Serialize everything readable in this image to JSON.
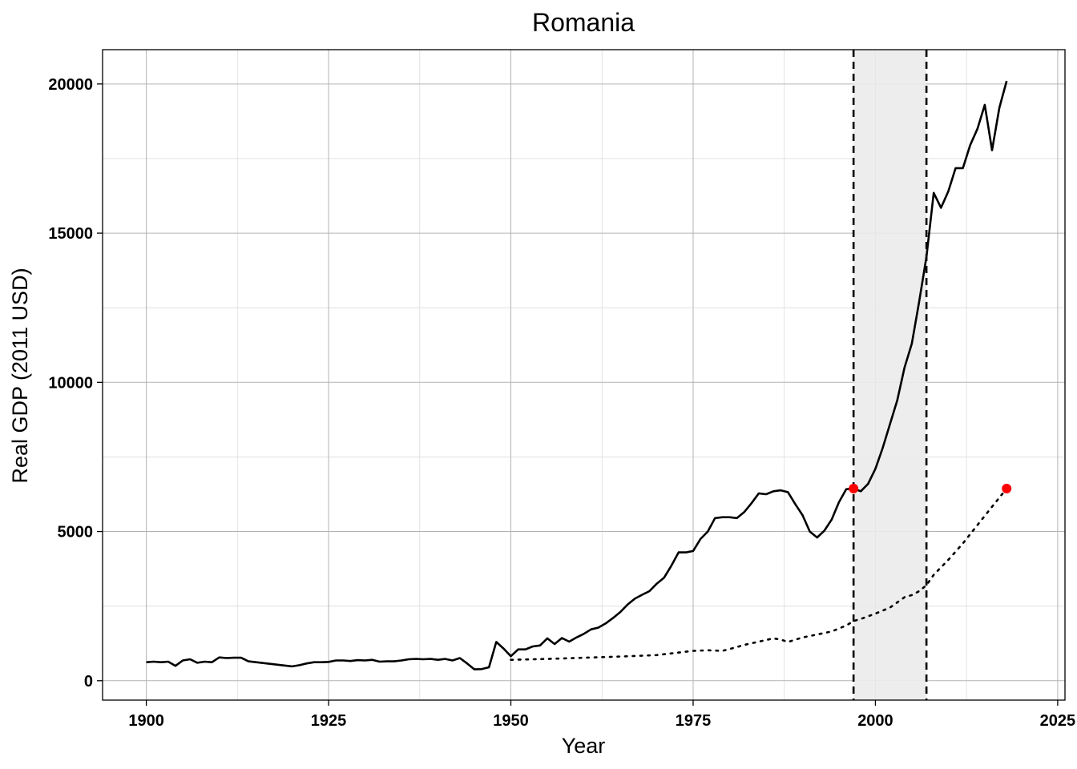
{
  "chart_data": {
    "type": "line",
    "title": "Romania",
    "xlabel": "Year",
    "ylabel": "Real GDP (2011 USD)",
    "xlim": [
      1894,
      2026
    ],
    "ylim": [
      -650,
      21150
    ],
    "x_ticks": [
      1900,
      1925,
      1950,
      1975,
      2000,
      2025
    ],
    "x_tick_labels": [
      "1900",
      "1925",
      "1950",
      "1975",
      "2000",
      "2025"
    ],
    "y_ticks": [
      0,
      5000,
      10000,
      15000,
      20000
    ],
    "y_tick_labels": [
      "0",
      "5000",
      "10000",
      "15000",
      "20000"
    ],
    "grid": true,
    "legend": "none",
    "shaded_region": {
      "x": [
        1997,
        2007
      ],
      "color": "#ebebeb",
      "border": "dashed"
    },
    "series": [
      {
        "style": "solid",
        "color": "#000000",
        "points": [
          [
            1900,
            620
          ],
          [
            1901,
            640
          ],
          [
            1902,
            620
          ],
          [
            1903,
            640
          ],
          [
            1904,
            500
          ],
          [
            1905,
            680
          ],
          [
            1906,
            720
          ],
          [
            1907,
            600
          ],
          [
            1908,
            640
          ],
          [
            1909,
            620
          ],
          [
            1910,
            780
          ],
          [
            1911,
            760
          ],
          [
            1912,
            770
          ],
          [
            1913,
            770
          ],
          [
            1914,
            650
          ],
          [
            1920,
            480
          ],
          [
            1921,
            520
          ],
          [
            1922,
            580
          ],
          [
            1923,
            620
          ],
          [
            1924,
            620
          ],
          [
            1925,
            630
          ],
          [
            1926,
            680
          ],
          [
            1927,
            680
          ],
          [
            1928,
            660
          ],
          [
            1929,
            690
          ],
          [
            1930,
            680
          ],
          [
            1931,
            700
          ],
          [
            1932,
            640
          ],
          [
            1933,
            650
          ],
          [
            1934,
            650
          ],
          [
            1935,
            680
          ],
          [
            1936,
            720
          ],
          [
            1937,
            730
          ],
          [
            1938,
            720
          ],
          [
            1939,
            730
          ],
          [
            1940,
            700
          ],
          [
            1941,
            730
          ],
          [
            1942,
            680
          ],
          [
            1943,
            760
          ],
          [
            1944,
            580
          ],
          [
            1945,
            380
          ],
          [
            1946,
            390
          ],
          [
            1947,
            450
          ],
          [
            1948,
            1300
          ],
          [
            1949,
            1080
          ],
          [
            1950,
            820
          ],
          [
            1951,
            1050
          ],
          [
            1952,
            1050
          ],
          [
            1953,
            1150
          ],
          [
            1954,
            1180
          ],
          [
            1955,
            1420
          ],
          [
            1956,
            1230
          ],
          [
            1957,
            1430
          ],
          [
            1958,
            1310
          ],
          [
            1959,
            1450
          ],
          [
            1960,
            1570
          ],
          [
            1961,
            1720
          ],
          [
            1962,
            1780
          ],
          [
            1963,
            1920
          ],
          [
            1964,
            2100
          ],
          [
            1965,
            2300
          ],
          [
            1966,
            2550
          ],
          [
            1967,
            2750
          ],
          [
            1968,
            2880
          ],
          [
            1969,
            3000
          ],
          [
            1970,
            3250
          ],
          [
            1971,
            3450
          ],
          [
            1972,
            3850
          ],
          [
            1973,
            4300
          ],
          [
            1974,
            4300
          ],
          [
            1975,
            4350
          ],
          [
            1976,
            4750
          ],
          [
            1977,
            5000
          ],
          [
            1978,
            5450
          ],
          [
            1979,
            5480
          ],
          [
            1980,
            5480
          ],
          [
            1981,
            5450
          ],
          [
            1982,
            5650
          ],
          [
            1983,
            5950
          ],
          [
            1984,
            6280
          ],
          [
            1985,
            6250
          ],
          [
            1986,
            6350
          ],
          [
            1987,
            6380
          ],
          [
            1988,
            6320
          ],
          [
            1989,
            5920
          ],
          [
            1990,
            5550
          ],
          [
            1991,
            5000
          ],
          [
            1992,
            4800
          ],
          [
            1993,
            5030
          ],
          [
            1994,
            5400
          ],
          [
            1995,
            5980
          ],
          [
            1996,
            6420
          ],
          [
            1997,
            6440
          ],
          [
            1998,
            6350
          ],
          [
            1999,
            6600
          ],
          [
            2000,
            7100
          ],
          [
            2001,
            7800
          ],
          [
            2002,
            8600
          ],
          [
            2003,
            9400
          ],
          [
            2004,
            10500
          ],
          [
            2005,
            11300
          ],
          [
            2006,
            12700
          ],
          [
            2007,
            14200
          ],
          [
            2008,
            16350
          ],
          [
            2009,
            15850
          ],
          [
            2010,
            16400
          ],
          [
            2011,
            17180
          ],
          [
            2012,
            17180
          ],
          [
            2013,
            17950
          ],
          [
            2014,
            18500
          ],
          [
            2015,
            19300
          ],
          [
            2016,
            17780
          ],
          [
            2017,
            19200
          ],
          [
            2018,
            20100
          ]
        ]
      },
      {
        "style": "dotted",
        "color": "#000000",
        "points": [
          [
            1950,
            700
          ],
          [
            1955,
            730
          ],
          [
            1960,
            770
          ],
          [
            1965,
            810
          ],
          [
            1970,
            860
          ],
          [
            1975,
            1000
          ],
          [
            1977,
            1020
          ],
          [
            1979,
            1000
          ],
          [
            1980,
            1060
          ],
          [
            1982,
            1200
          ],
          [
            1984,
            1310
          ],
          [
            1986,
            1420
          ],
          [
            1987,
            1380
          ],
          [
            1988,
            1300
          ],
          [
            1990,
            1450
          ],
          [
            1992,
            1550
          ],
          [
            1994,
            1650
          ],
          [
            1996,
            1850
          ],
          [
            1997,
            2000
          ],
          [
            1998,
            2070
          ],
          [
            2000,
            2250
          ],
          [
            2002,
            2450
          ],
          [
            2004,
            2800
          ],
          [
            2005,
            2870
          ],
          [
            2006,
            3000
          ],
          [
            2007,
            3200
          ],
          [
            2008,
            3550
          ],
          [
            2010,
            4050
          ],
          [
            2012,
            4600
          ],
          [
            2014,
            5220
          ],
          [
            2016,
            5830
          ],
          [
            2018,
            6440
          ]
        ]
      }
    ],
    "highlight_points": [
      {
        "x": 1997,
        "y": 6440,
        "color": "#ff0000"
      },
      {
        "x": 2018,
        "y": 6440,
        "color": "#ff0000"
      }
    ]
  }
}
